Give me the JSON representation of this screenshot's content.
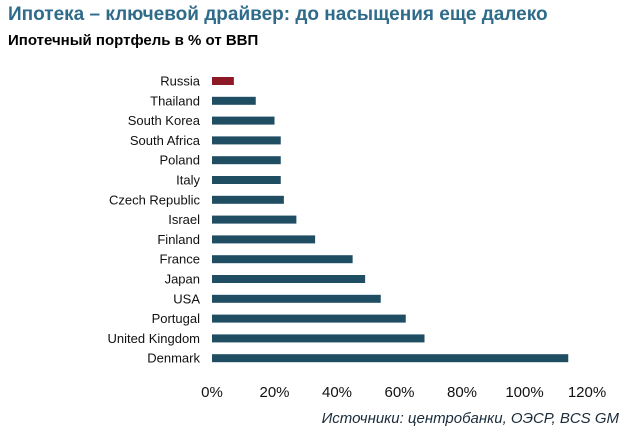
{
  "header": {
    "title": "Ипотека – ключевой драйвер: до насыщения еще далеко",
    "subtitle": "Ипотечный портфель в % от ВВП"
  },
  "footer": {
    "source": "Источники: центробанки, ОЭСР, BCS GM"
  },
  "chart_data": {
    "type": "bar",
    "orientation": "horizontal",
    "categories": [
      "Russia",
      "Thailand",
      "South Korea",
      "South Africa",
      "Poland",
      "Italy",
      "Czech Republic",
      "Israel",
      "Finland",
      "France",
      "Japan",
      "USA",
      "Portugal",
      "United Kingdom",
      "Denmark"
    ],
    "values": [
      7,
      14,
      20,
      22,
      22,
      22,
      23,
      27,
      33,
      45,
      49,
      54,
      62,
      68,
      114
    ],
    "xlim": [
      0,
      120
    ],
    "xticks": [
      "0%",
      "20%",
      "40%",
      "60%",
      "80%",
      "100%",
      "120%"
    ],
    "bar_color": "#1f4e63",
    "highlight_color": "#8b1a26",
    "highlight_category": "Russia",
    "grid": false,
    "legend": "none"
  }
}
